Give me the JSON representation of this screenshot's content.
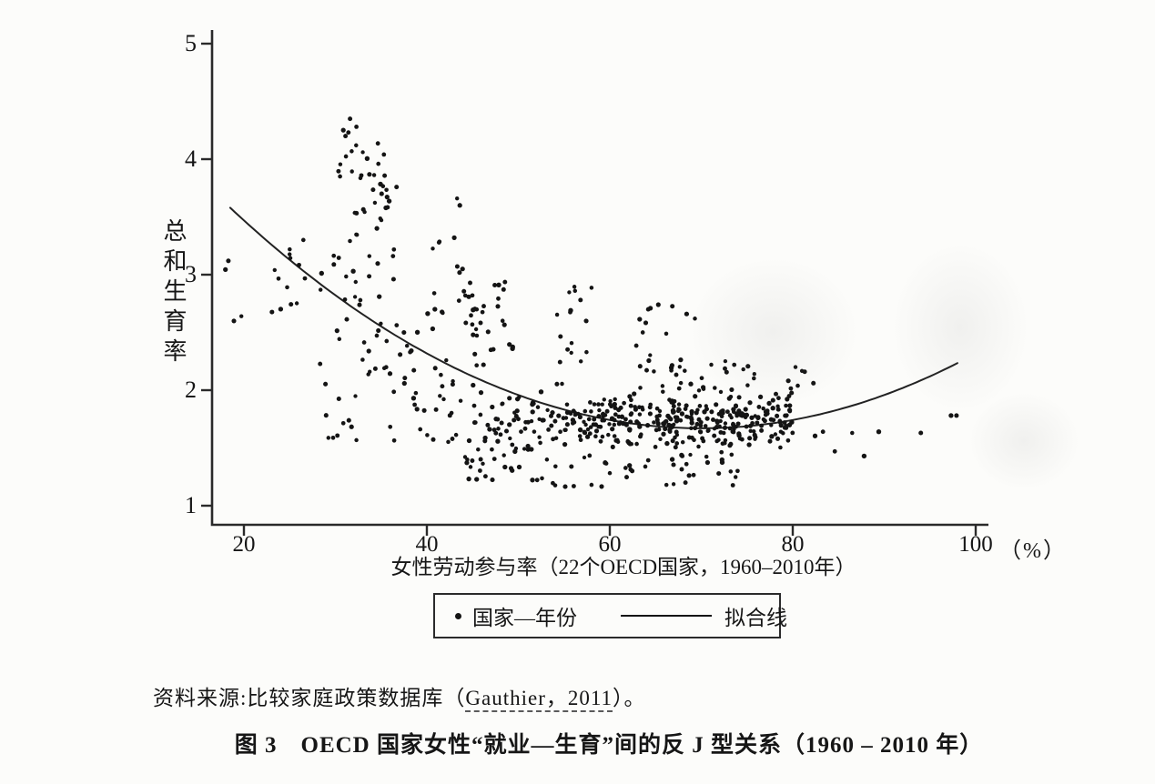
{
  "ink_color": "#161616",
  "figure": {
    "source": {
      "prefix": "资料来源:比较家庭政策数据库（",
      "link_text": "Gauthier，2011",
      "suffix": "）。"
    },
    "caption": "图 3　OECD 国家女性“就业—生育”间的反 J 型关系（1960 – 2010 年）"
  },
  "chart_data": {
    "type": "scatter",
    "title": "",
    "xlabel": "女性劳动参与率（22个OECD国家，1960–2010年）",
    "ylabel": "总和生育率",
    "x_unit": "（%）",
    "xlim": [
      16.5,
      101
    ],
    "ylim": [
      0.95,
      5.1
    ],
    "x_ticks": [
      20,
      40,
      60,
      80,
      100
    ],
    "y_ticks": [
      5,
      4,
      3,
      2,
      1
    ],
    "grid": false,
    "legend": {
      "position": "bottom-center",
      "items": [
        {
          "marker": "dot",
          "label": "国家—年份"
        },
        {
          "marker": "line",
          "label": "拟合线"
        }
      ]
    },
    "fit_curve": {
      "shape": "quadratic",
      "a": 0.00072,
      "vertex_x": 70,
      "vertex_y": 1.67,
      "x_start": 18.5,
      "x_end": 98,
      "description": "反J型（先降后升）拟合线"
    },
    "points": [
      [
        31.6,
        4.35
      ],
      [
        32.3,
        4.28
      ],
      [
        31.1,
        4.2
      ],
      [
        33.0,
        4.06
      ],
      [
        35.3,
        4.04
      ],
      [
        34.7,
        3.96
      ],
      [
        43.3,
        3.66
      ],
      [
        43.6,
        3.6
      ],
      [
        43.0,
        3.32
      ],
      [
        43.9,
        3.05
      ],
      [
        44.2,
        2.82
      ],
      [
        56.2,
        2.86
      ],
      [
        56.8,
        2.78
      ],
      [
        57.4,
        2.6
      ],
      [
        64.2,
        2.7
      ],
      [
        65.3,
        2.74
      ],
      [
        63.6,
        2.5
      ],
      [
        68.4,
        2.66
      ],
      [
        69.3,
        2.62
      ],
      [
        73.6,
        2.22
      ],
      [
        74.6,
        2.18
      ],
      [
        75.8,
        2.14
      ],
      [
        80.3,
        2.2
      ],
      [
        81.3,
        2.16
      ],
      [
        83.3,
        1.64
      ],
      [
        86.5,
        1.63
      ],
      [
        89.4,
        1.64
      ],
      [
        94.0,
        1.63
      ],
      [
        97.3,
        1.78
      ],
      [
        97.9,
        1.78
      ],
      [
        84.6,
        1.47
      ],
      [
        87.8,
        1.43
      ],
      [
        18.3,
        3.12
      ],
      [
        25.0,
        3.22
      ],
      [
        26.5,
        3.3
      ]
    ],
    "point_clusters": [
      {
        "n": 16,
        "x": [
          17.5,
          29.5
        ],
        "y": [
          2.55,
          3.3
        ]
      },
      {
        "n": 12,
        "x": [
          30.3,
          34.8
        ],
        "y": [
          3.85,
          4.33
        ]
      },
      {
        "n": 24,
        "x": [
          32.0,
          36.8
        ],
        "y": [
          3.3,
          3.9
        ]
      },
      {
        "n": 26,
        "x": [
          29.5,
          36.5
        ],
        "y": [
          2.4,
          3.3
        ]
      },
      {
        "n": 22,
        "x": [
          28.0,
          36.5
        ],
        "y": [
          1.55,
          2.35
        ]
      },
      {
        "n": 14,
        "x": [
          40.0,
          45.0
        ],
        "y": [
          2.45,
          3.35
        ]
      },
      {
        "n": 20,
        "x": [
          44.5,
          49.5
        ],
        "y": [
          2.35,
          3.0
        ]
      },
      {
        "n": 30,
        "x": [
          36.0,
          47.0
        ],
        "y": [
          1.95,
          2.75
        ]
      },
      {
        "n": 26,
        "x": [
          38.0,
          48.0
        ],
        "y": [
          1.5,
          2.0
        ]
      },
      {
        "n": 38,
        "x": [
          44.0,
          52.0
        ],
        "y": [
          1.22,
          1.75
        ]
      },
      {
        "n": 180,
        "x": [
          48.0,
          80.0
        ],
        "y": [
          1.4,
          2.1
        ],
        "mode": "gauss"
      },
      {
        "n": 120,
        "x": [
          52.0,
          80.0
        ],
        "y": [
          1.45,
          2.0
        ],
        "mode": "gauss"
      },
      {
        "n": 80,
        "x": [
          55.0,
          78.0
        ],
        "y": [
          1.5,
          1.95
        ],
        "mode": "gauss"
      },
      {
        "n": 45,
        "x": [
          52.0,
          74.0
        ],
        "y": [
          1.15,
          1.45
        ]
      },
      {
        "n": 14,
        "x": [
          54.0,
          58.0
        ],
        "y": [
          2.15,
          2.9
        ]
      },
      {
        "n": 13,
        "x": [
          62.5,
          67.0
        ],
        "y": [
          2.15,
          2.75
        ]
      },
      {
        "n": 16,
        "x": [
          65.0,
          76.0
        ],
        "y": [
          1.95,
          2.3
        ]
      },
      {
        "n": 12,
        "x": [
          79.0,
          82.5
        ],
        "y": [
          1.5,
          2.2
        ]
      }
    ],
    "seed": 20110
  }
}
